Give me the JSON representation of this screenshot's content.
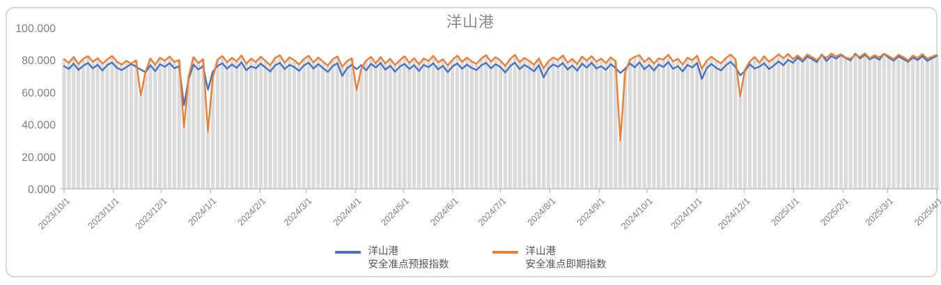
{
  "panel": {
    "border_color": "#d8d8d8",
    "background": "#ffffff"
  },
  "chart_data": {
    "type": "line",
    "title": "洋山港",
    "xlabel": "",
    "ylabel": "",
    "ylim": [
      0,
      100
    ],
    "y_ticks": [
      "0.000",
      "20.000",
      "40.000",
      "60.000",
      "80.000",
      "100.000"
    ],
    "y_tick_values": [
      0,
      20,
      40,
      60,
      80,
      100
    ],
    "grid": false,
    "legend_position": "bottom",
    "x_start": "2023/10/1",
    "x_end": "2025/4/1",
    "total_days": 548,
    "points_step_days": 3,
    "x_ticks": [
      {
        "label": "2023/10/1",
        "day": 0
      },
      {
        "label": "2023/11/1",
        "day": 31
      },
      {
        "label": "2023/12/1",
        "day": 61
      },
      {
        "label": "2024/1/1",
        "day": 92
      },
      {
        "label": "2024/2/1",
        "day": 123
      },
      {
        "label": "2024/3/1",
        "day": 152
      },
      {
        "label": "2024/4/1",
        "day": 183
      },
      {
        "label": "2024/5/1",
        "day": 213
      },
      {
        "label": "2024/6/1",
        "day": 244
      },
      {
        "label": "2024/7/1",
        "day": 274
      },
      {
        "label": "2024/8/1",
        "day": 305
      },
      {
        "label": "2024/9/1",
        "day": 336
      },
      {
        "label": "2024/10/1",
        "day": 366
      },
      {
        "label": "2024/11/1",
        "day": 397
      },
      {
        "label": "2024/12/1",
        "day": 427
      },
      {
        "label": "2025/1/1",
        "day": 458
      },
      {
        "label": "2025/2/1",
        "day": 489
      },
      {
        "label": "2025/3/1",
        "day": 517
      },
      {
        "label": "2025/4/1",
        "day": 548
      }
    ],
    "background_bars": {
      "color": "#dbdbdb",
      "follows_series": "洋山港 安全准点即期指数"
    },
    "axis_color": "#bfbfbf",
    "tick_label_color": "#7f7f7f",
    "series": [
      {
        "name": "洋山港 安全准点预报指数",
        "color": "#4472C4",
        "values": [
          76.2,
          74.5,
          77.8,
          73.9,
          76.5,
          78.2,
          74.8,
          77.1,
          73.5,
          76.9,
          78.5,
          75.2,
          73.8,
          75.6,
          77.6,
          75.9,
          74.0,
          72.5,
          76.8,
          73.1,
          77.4,
          75.8,
          78.1,
          74.9,
          76.2,
          52.0,
          68.5,
          77.2,
          74.1,
          76.3,
          61.5,
          72.8,
          76.4,
          78.0,
          74.6,
          77.3,
          75.1,
          78.6,
          73.7,
          76.1,
          74.9,
          77.8,
          75.3,
          72.9,
          76.7,
          78.3,
          74.4,
          77.0,
          75.7,
          73.3,
          76.6,
          78.4,
          74.7,
          77.5,
          75.0,
          72.6,
          76.2,
          78.1,
          70.2,
          74.8,
          77.1,
          74.3,
          76.9,
          73.6,
          77.7,
          75.4,
          78.2,
          74.0,
          76.5,
          72.8,
          75.9,
          77.6,
          74.5,
          76.8,
          73.2,
          77.0,
          75.5,
          78.0,
          74.2,
          76.4,
          72.5,
          76.0,
          77.9,
          74.6,
          77.2,
          75.1,
          73.8,
          76.7,
          78.3,
          74.9,
          77.4,
          75.6,
          72.3,
          76.1,
          78.5,
          74.4,
          77.0,
          75.2,
          73.0,
          76.8,
          69.2,
          74.7,
          77.3,
          75.8,
          78.1,
          74.1,
          76.6,
          73.4,
          77.8,
          75.3,
          78.4,
          74.8,
          76.2,
          73.9,
          77.5,
          75.0,
          72.0,
          74.6,
          77.9,
          75.5,
          78.6,
          74.3,
          76.9,
          73.5,
          77.2,
          75.7,
          78.8,
          74.5,
          76.3,
          72.9,
          77.0,
          75.4,
          78.2,
          68.3,
          74.9,
          77.6,
          75.1,
          73.6,
          76.7,
          78.9,
          75.8,
          70.5,
          73.2,
          77.4,
          74.7,
          75.9,
          78.0,
          74.4,
          76.6,
          79.2,
          76.8,
          80.1,
          78.3,
          81.5,
          79.0,
          82.2,
          80.6,
          78.7,
          83.5,
          79.4,
          82.5,
          80.9,
          83.1,
          81.2,
          79.8,
          83.9,
          81.0,
          83.4,
          80.4,
          82.0,
          80.2,
          84.0,
          81.4,
          79.6,
          82.3,
          80.7,
          78.9,
          81.6,
          80.0,
          82.4,
          79.5,
          81.1,
          82.6
        ]
      },
      {
        "name": "洋山港 安全准点即期指数",
        "color": "#ED7D31",
        "values": [
          80.5,
          78.2,
          81.9,
          77.5,
          80.8,
          82.4,
          78.9,
          81.2,
          77.8,
          80.3,
          82.6,
          79.1,
          77.2,
          79.5,
          77.8,
          79.8,
          58.0,
          73.0,
          81.0,
          77.0,
          81.5,
          79.6,
          82.2,
          78.8,
          80.1,
          38.0,
          70.2,
          81.8,
          78.1,
          80.6,
          35.5,
          68.9,
          80.2,
          82.5,
          78.6,
          81.4,
          79.2,
          82.9,
          77.6,
          80.9,
          78.7,
          82.1,
          79.5,
          76.8,
          81.3,
          83.0,
          78.3,
          81.7,
          79.9,
          77.3,
          80.7,
          82.7,
          78.5,
          81.6,
          79.0,
          76.5,
          80.4,
          82.3,
          75.8,
          79.3,
          81.1,
          61.2,
          74.8,
          79.7,
          82.0,
          78.0,
          81.9,
          77.9,
          80.8,
          76.9,
          79.8,
          82.4,
          78.2,
          81.2,
          77.4,
          81.0,
          79.4,
          82.6,
          78.6,
          80.5,
          76.7,
          80.1,
          82.8,
          78.9,
          81.5,
          79.1,
          77.7,
          80.9,
          83.1,
          79.0,
          81.8,
          79.7,
          76.4,
          80.6,
          83.2,
          78.7,
          81.3,
          79.5,
          77.1,
          81.0,
          74.9,
          79.2,
          81.6,
          80.0,
          82.9,
          78.4,
          80.7,
          77.5,
          82.2,
          79.6,
          82.5,
          79.0,
          80.9,
          78.1,
          81.7,
          79.3,
          30.0,
          72.4,
          80.2,
          82.0,
          83.0,
          78.8,
          81.4,
          77.8,
          81.1,
          80.3,
          83.3,
          79.2,
          80.8,
          77.2,
          81.5,
          79.9,
          82.7,
          74.6,
          79.5,
          82.1,
          79.7,
          78.0,
          81.2,
          83.4,
          80.4,
          57.5,
          74.2,
          79.1,
          81.9,
          78.3,
          82.4,
          78.9,
          81.0,
          83.6,
          81.2,
          83.8,
          80.6,
          82.9,
          80.1,
          83.5,
          81.8,
          79.9,
          83.0,
          81.4,
          84.0,
          82.2,
          83.6,
          81.6,
          80.8,
          83.2,
          82.0,
          84.2,
          81.1,
          83.0,
          81.7,
          83.9,
          82.4,
          80.5,
          83.3,
          81.9,
          79.8,
          82.8,
          81.3,
          83.7,
          80.9,
          82.1,
          83.2
        ]
      }
    ]
  },
  "legend": {
    "entries": [
      {
        "line1": "洋山港",
        "line2": "安全准点预报指数",
        "color": "#4472C4"
      },
      {
        "line1": "洋山港",
        "line2": "安全准点即期指数",
        "color": "#ED7D31"
      }
    ]
  }
}
